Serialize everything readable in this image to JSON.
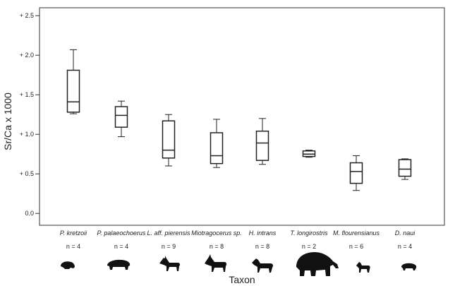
{
  "chart_data": {
    "type": "box",
    "ylabel": "Sr/Ca x 1000",
    "xlabel": "Taxon",
    "ylim": [
      -0.15,
      2.6
    ],
    "yticks": [
      0.0,
      0.5,
      1.0,
      1.5,
      2.0,
      2.5
    ],
    "ytick_labels": [
      "0.0",
      "+ 0.5",
      "+ 1.0",
      "+ 1.5",
      "+ 2.0",
      "+ 2.5"
    ],
    "grid": false,
    "categories": [
      "P. kretzoii",
      "P. palaeochoerus",
      "L. aff. pierensis",
      "Miotragocerus sp.",
      "H. intrans",
      "T. longirostris",
      "M. flourensianus",
      "D. naui"
    ],
    "sample_sizes": [
      "n = 4",
      "n = 4",
      "n = 9",
      "n = 8",
      "n = 8",
      "n = 2",
      "n = 6",
      "n = 4"
    ],
    "silhouettes": [
      "rodent-silhouette-icon",
      "suid-silhouette-icon",
      "antelope-silhouette-icon",
      "bovid-silhouette-icon",
      "horse-silhouette-icon",
      "proboscidean-silhouette-icon",
      "small-deer-silhouette-icon",
      "small-mammal-silhouette-icon"
    ],
    "boxes": [
      {
        "min": 1.26,
        "q1": 1.28,
        "median": 1.41,
        "q3": 1.81,
        "max": 2.07
      },
      {
        "min": 0.97,
        "q1": 1.09,
        "median": 1.24,
        "q3": 1.35,
        "max": 1.42
      },
      {
        "min": 0.6,
        "q1": 0.7,
        "median": 0.8,
        "q3": 1.17,
        "max": 1.25
      },
      {
        "min": 0.58,
        "q1": 0.63,
        "median": 0.73,
        "q3": 1.02,
        "max": 1.19
      },
      {
        "min": 0.62,
        "q1": 0.67,
        "median": 0.89,
        "q3": 1.04,
        "max": 1.2
      },
      {
        "min": 0.71,
        "q1": 0.72,
        "median": 0.75,
        "q3": 0.79,
        "max": 0.8
      },
      {
        "min": 0.29,
        "q1": 0.38,
        "median": 0.53,
        "q3": 0.64,
        "max": 0.73
      },
      {
        "min": 0.43,
        "q1": 0.47,
        "median": 0.56,
        "q3": 0.68,
        "max": 0.69
      }
    ]
  }
}
